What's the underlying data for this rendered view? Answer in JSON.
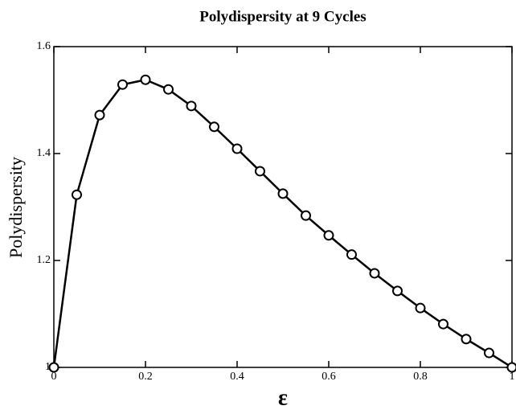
{
  "chart_data": {
    "type": "line",
    "title": "Polydispersity at 9 Cycles",
    "x_label": "ε",
    "y_label": "Polydispersity",
    "x": [
      0,
      0.05,
      0.1,
      0.15,
      0.2,
      0.25,
      0.3,
      0.35,
      0.4,
      0.45,
      0.5,
      0.55,
      0.6,
      0.65,
      0.7,
      0.75,
      0.8,
      0.85,
      0.9,
      0.95,
      1
    ],
    "values": [
      1.0,
      1.323,
      1.472,
      1.529,
      1.538,
      1.52,
      1.489,
      1.45,
      1.409,
      1.367,
      1.325,
      1.284,
      1.247,
      1.211,
      1.176,
      1.143,
      1.111,
      1.081,
      1.053,
      1.027,
      1.0
    ],
    "color": "#000000",
    "xlim": [
      0,
      1
    ],
    "xticks": [
      0,
      0.2,
      0.4,
      0.6,
      0.8,
      1
    ],
    "ylim": [
      1,
      1.6
    ],
    "yticks": [
      1,
      1.2,
      1.4,
      1.6
    ]
  }
}
